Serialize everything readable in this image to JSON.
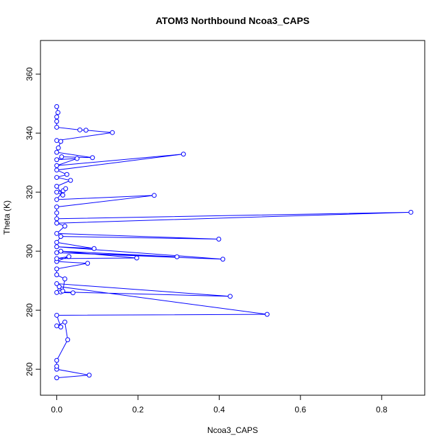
{
  "chart_data": {
    "type": "line",
    "title": "ATOM3 Northbound Ncoa3_CAPS",
    "xlabel": "Ncoa3_CAPS",
    "ylabel": "Theta (K)",
    "xlim": [
      -0.04,
      0.906
    ],
    "ylim": [
      251.2,
      371.4
    ],
    "x_ticks": [
      0,
      0.2,
      0.4,
      0.6,
      0.8
    ],
    "x_tick_labels": [
      "0.0",
      "0.2",
      "0.4",
      "0.6",
      "0.8"
    ],
    "y_ticks": [
      260,
      280,
      300,
      320,
      340,
      360
    ],
    "y_tick_labels": [
      "260",
      "280",
      "300",
      "320",
      "340",
      "360"
    ],
    "grid": false,
    "series": [
      {
        "color": "#0000ff",
        "marker": "open-circle",
        "points": [
          [
            0.0,
            257.1
          ],
          [
            0.08,
            258.0
          ],
          [
            0.0,
            260.0
          ],
          [
            0.0,
            261.0
          ],
          [
            0.0,
            263.0
          ],
          [
            0.027,
            270.0
          ],
          [
            0.02,
            276.0
          ],
          [
            0.0,
            274.7
          ],
          [
            0.01,
            274.3
          ],
          [
            0.0,
            278.3
          ],
          [
            0.518,
            278.6
          ],
          [
            0.006,
            288.0
          ],
          [
            0.0,
            286.0
          ],
          [
            0.04,
            285.9
          ],
          [
            0.01,
            286.2
          ],
          [
            0.427,
            284.7
          ],
          [
            0.0,
            289.0
          ],
          [
            0.015,
            286.5
          ],
          [
            0.02,
            290.6
          ],
          [
            0.0,
            292.0
          ],
          [
            0.0,
            294.0
          ],
          [
            0.076,
            295.9
          ],
          [
            0.0,
            296.5
          ],
          [
            0.03,
            298.2
          ],
          [
            0.0,
            297.5
          ],
          [
            0.197,
            297.7
          ],
          [
            0.01,
            300.0
          ],
          [
            0.296,
            298.1
          ],
          [
            0.0,
            299.5
          ],
          [
            0.409,
            297.3
          ],
          [
            0.0,
            301.5
          ],
          [
            0.092,
            300.9
          ],
          [
            0.0,
            303.0
          ],
          [
            0.01,
            305.0
          ],
          [
            0.399,
            304.1
          ],
          [
            0.0,
            306.0
          ],
          [
            0.02,
            308.5
          ],
          [
            0.0,
            309.5
          ],
          [
            0.872,
            313.2
          ],
          [
            0.0,
            311.0
          ],
          [
            0.0,
            313.0
          ],
          [
            0.0,
            315.0
          ],
          [
            0.24,
            318.9
          ],
          [
            0.0,
            317.5
          ],
          [
            0.016,
            320.5
          ],
          [
            0.022,
            321.2
          ],
          [
            0.0,
            320.0
          ],
          [
            0.015,
            319.0
          ],
          [
            0.0,
            322.0
          ],
          [
            0.034,
            324.0
          ],
          [
            0.0,
            325.0
          ],
          [
            0.025,
            326.0
          ],
          [
            0.0,
            327.5
          ],
          [
            0.312,
            332.9
          ],
          [
            0.0,
            329.0
          ],
          [
            0.05,
            331.4
          ],
          [
            0.0,
            331.0
          ],
          [
            0.012,
            332.0
          ],
          [
            0.088,
            331.7
          ],
          [
            0.0,
            333.5
          ],
          [
            0.004,
            335.0
          ],
          [
            0.01,
            337.2
          ],
          [
            0.0,
            337.5
          ],
          [
            0.137,
            340.2
          ],
          [
            0.072,
            341.0
          ],
          [
            0.057,
            341.1
          ],
          [
            0.0,
            342.0
          ],
          [
            0.0,
            344.0
          ],
          [
            0.0,
            345.5
          ],
          [
            0.003,
            347.0
          ],
          [
            0.0,
            349.0
          ]
        ]
      }
    ]
  }
}
